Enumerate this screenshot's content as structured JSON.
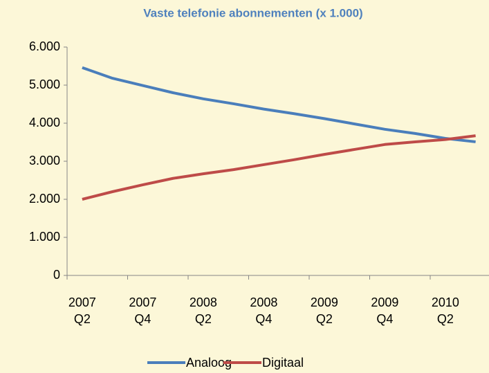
{
  "chart_data": {
    "type": "line",
    "title": "Vaste telefonie abonnementen (x 1.000)",
    "categories": [
      "2007\nQ2",
      null,
      "2007\nQ4",
      null,
      "2008\nQ2",
      null,
      "2008\nQ4",
      null,
      "2009\nQ2",
      null,
      "2009\nQ4",
      null,
      "2010\nQ2",
      null
    ],
    "series": [
      {
        "name": "Analoog",
        "color": "#4a7ebb",
        "values": [
          5460,
          5180,
          4990,
          4800,
          4640,
          4510,
          4370,
          4250,
          4120,
          3980,
          3840,
          3730,
          3600,
          3510
        ]
      },
      {
        "name": "Digitaal",
        "color": "#be4b48",
        "values": [
          2000,
          2200,
          2380,
          2550,
          2670,
          2780,
          2910,
          3040,
          3180,
          3310,
          3440,
          3510,
          3570,
          3670
        ]
      }
    ],
    "ylim": [
      0,
      6000
    ],
    "yticks": [
      0,
      {
        "value": 1000,
        "label": "1.000"
      },
      {
        "value": 2000,
        "label": "2.000"
      },
      {
        "value": 3000,
        "label": "3.000"
      },
      {
        "value": 4000,
        "label": "4.000"
      },
      {
        "value": 5000,
        "label": "5.000"
      },
      {
        "value": 6000,
        "label": "6.000"
      }
    ],
    "legend": "bottom"
  }
}
